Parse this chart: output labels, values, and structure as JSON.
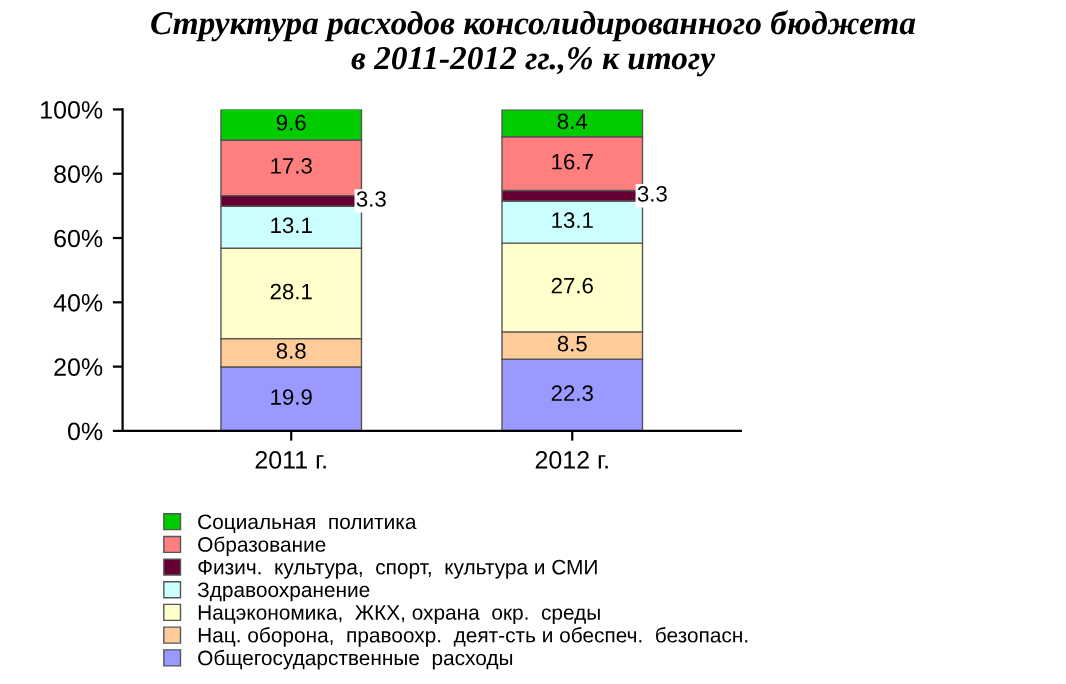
{
  "chart_data": {
    "type": "bar",
    "title": "Структура расходов консолидированного бюджета\nв 2011-2012 гг.,% к итогу",
    "categories": [
      "2011 г.",
      "2012 г."
    ],
    "stacked": true,
    "series": [
      {
        "name": "Общегосударственные  расходы",
        "color": "#9999ff",
        "values": [
          19.9,
          22.3
        ]
      },
      {
        "name": "Нац. оборона,  правоохр.  деят-сть и обеспеч.  безопасн.",
        "color": "#ffcc99",
        "values": [
          8.8,
          8.5
        ]
      },
      {
        "name": "Нацэкономика,  ЖКХ, охрана  окр.  среды",
        "color": "#ffffcc",
        "values": [
          28.1,
          27.6
        ]
      },
      {
        "name": "Здравоохранение",
        "color": "#ccffff",
        "values": [
          13.1,
          13.1
        ]
      },
      {
        "name": "Физич.  культура,  спорт,  культура и СМИ",
        "color": "#660033",
        "values": [
          3.3,
          3.3
        ]
      },
      {
        "name": "Образование",
        "color": "#ff7f7f",
        "values": [
          17.3,
          16.7
        ]
      },
      {
        "name": "Социальная  политика",
        "color": "#00cc00",
        "values": [
          9.6,
          8.4
        ]
      }
    ],
    "ylim": [
      0,
      100
    ],
    "yticks": [
      {
        "value": 0,
        "label": "0%"
      },
      {
        "value": 20,
        "label": "20%"
      },
      {
        "value": 40,
        "label": "40%"
      },
      {
        "value": 60,
        "label": "60%"
      },
      {
        "value": 80,
        "label": "80%"
      },
      {
        "value": 100,
        "label": "100%"
      }
    ],
    "data_labels": true,
    "legend": "bottom",
    "grid": false
  }
}
